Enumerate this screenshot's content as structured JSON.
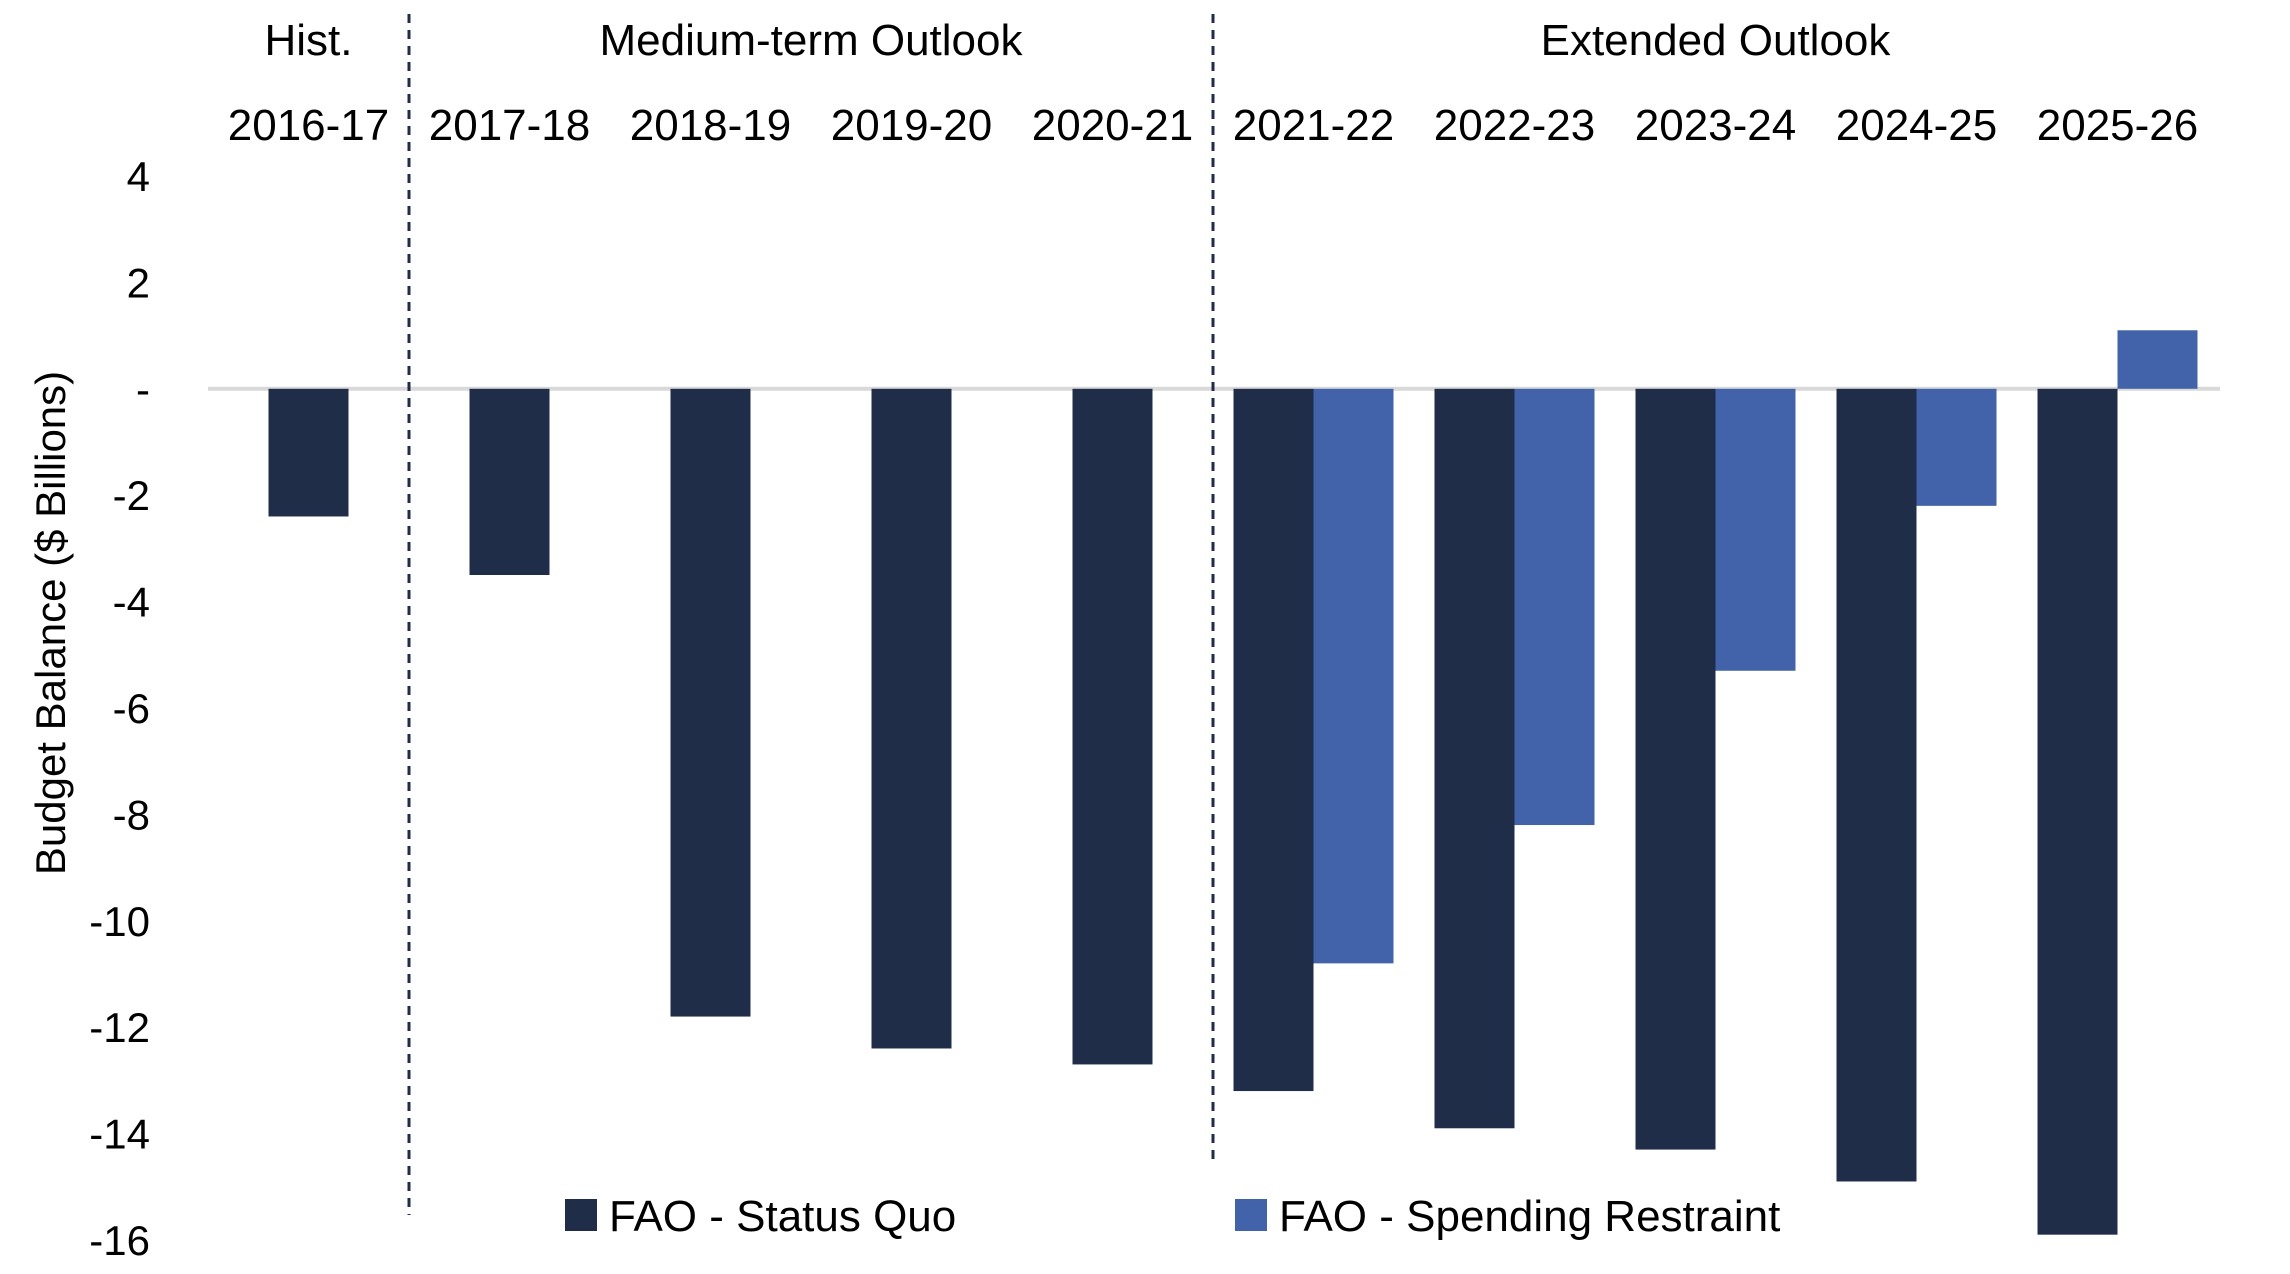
{
  "chart_data": {
    "type": "bar",
    "title": "",
    "xlabel": "",
    "ylabel": "Budget Balance ($ Billions)",
    "ylim": [
      -16,
      4
    ],
    "y_ticks": [
      4,
      2,
      0,
      -2,
      -4,
      -6,
      -8,
      -10,
      -12,
      -14,
      -16
    ],
    "y_tick_labels": [
      "4",
      "2",
      "-",
      "-2",
      "-4",
      "-6",
      "-8",
      "-10",
      "-12",
      "-14",
      "-16"
    ],
    "categories": [
      "2016-17",
      "2017-18",
      "2018-19",
      "2019-20",
      "2020-21",
      "2021-22",
      "2022-23",
      "2023-24",
      "2024-25",
      "2025-26"
    ],
    "period_groups": [
      {
        "label": "Hist.",
        "start": 0,
        "end": 0
      },
      {
        "label": "Medium-term Outlook",
        "start": 1,
        "end": 4
      },
      {
        "label": "Extended Outlook",
        "start": 5,
        "end": 9
      }
    ],
    "series": [
      {
        "name": "FAO - Status Quo",
        "color": "#1f2d48",
        "values": [
          -2.4,
          -3.5,
          -11.8,
          -12.4,
          -12.7,
          -13.2,
          -13.9,
          -14.3,
          -14.9,
          -15.9
        ]
      },
      {
        "name": "FAO - Spending Restraint",
        "color": "#4263aa",
        "values": [
          null,
          null,
          null,
          null,
          null,
          -10.8,
          -8.2,
          -5.3,
          -2.2,
          1.1
        ]
      }
    ],
    "zero_line_color": "#d9d9d9",
    "divider_color": "#1f2d48",
    "grid": false,
    "legend_position": "bottom"
  }
}
